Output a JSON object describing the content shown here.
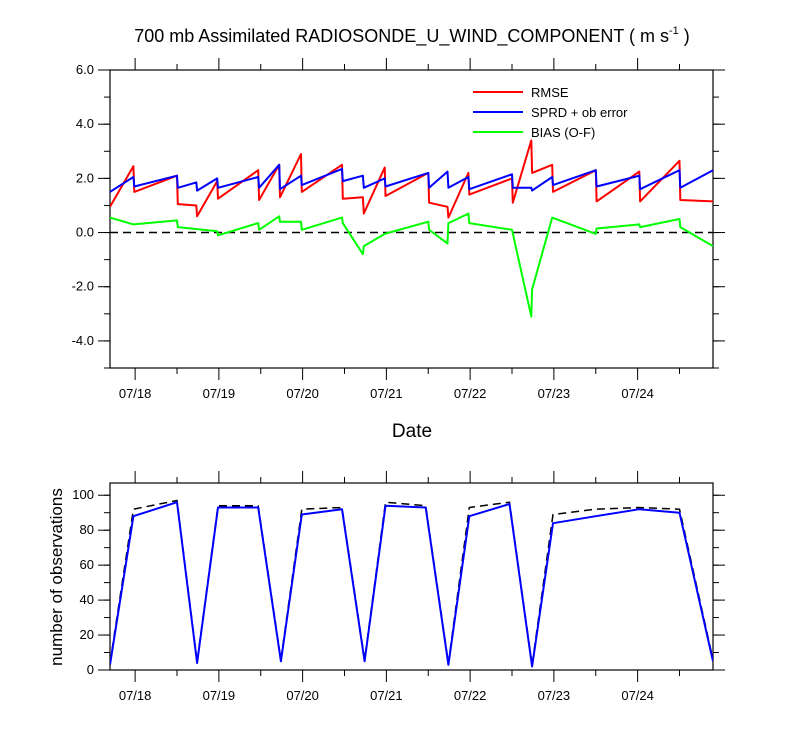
{
  "chart_data": [
    {
      "type": "line",
      "title": "700 mb Assimilated RADIOSONDE_U_WIND_COMPONENT ( m s",
      "title_unit_exponent": "-1",
      "title_suffix": " )",
      "xlabel": "Date",
      "ylabel": "",
      "x_unit": "days since 07/17 00Z",
      "xlim": [
        0.7,
        7.9
      ],
      "ylim": [
        -5,
        6
      ],
      "yticks": [
        -4,
        -2,
        0,
        2,
        4,
        6
      ],
      "ytick_labels": [
        "-4.0",
        "-2.0",
        "0.0",
        "2.0",
        "4.0",
        "6.0"
      ],
      "xticks": [
        1,
        2,
        3,
        4,
        5,
        6,
        7
      ],
      "xtick_labels": [
        "07/18",
        "07/19",
        "07/20",
        "07/21",
        "07/22",
        "07/23",
        "07/24"
      ],
      "zero_line": {
        "y": 0,
        "style": "dashed",
        "color": "#000000"
      },
      "legend_position": "top-right",
      "series": [
        {
          "name": "RMSE",
          "color": "#ff0000",
          "points": [
            [
              0.7,
              0.95
            ],
            [
              0.98,
              2.45
            ],
            [
              0.99,
              1.5
            ],
            [
              1.5,
              2.1
            ],
            [
              1.51,
              1.05
            ],
            [
              1.73,
              1.0
            ],
            [
              1.74,
              0.6
            ],
            [
              1.98,
              1.9
            ],
            [
              1.99,
              1.25
            ],
            [
              2.47,
              2.3
            ],
            [
              2.48,
              1.2
            ],
            [
              2.72,
              2.5
            ],
            [
              2.73,
              1.3
            ],
            [
              2.98,
              2.9
            ],
            [
              2.99,
              1.5
            ],
            [
              3.47,
              2.5
            ],
            [
              3.48,
              1.25
            ],
            [
              3.72,
              1.3
            ],
            [
              3.73,
              0.7
            ],
            [
              3.98,
              2.4
            ],
            [
              3.99,
              1.35
            ],
            [
              4.5,
              2.2
            ],
            [
              4.51,
              1.1
            ],
            [
              4.73,
              0.95
            ],
            [
              4.74,
              0.55
            ],
            [
              4.98,
              2.2
            ],
            [
              4.99,
              1.4
            ],
            [
              5.5,
              2.0
            ],
            [
              5.51,
              1.1
            ],
            [
              5.73,
              3.4
            ],
            [
              5.74,
              2.2
            ],
            [
              5.98,
              2.5
            ],
            [
              5.99,
              1.5
            ],
            [
              6.5,
              2.3
            ],
            [
              6.51,
              1.15
            ],
            [
              7.02,
              2.25
            ],
            [
              7.03,
              1.15
            ],
            [
              7.5,
              2.65
            ],
            [
              7.51,
              1.2
            ],
            [
              7.9,
              1.15
            ]
          ]
        },
        {
          "name": "SPRD + ob error",
          "color": "#0000ff",
          "points": [
            [
              0.7,
              1.5
            ],
            [
              0.98,
              2.05
            ],
            [
              0.99,
              1.7
            ],
            [
              1.5,
              2.1
            ],
            [
              1.51,
              1.65
            ],
            [
              1.73,
              1.85
            ],
            [
              1.74,
              1.55
            ],
            [
              1.98,
              2.0
            ],
            [
              1.99,
              1.65
            ],
            [
              2.47,
              2.05
            ],
            [
              2.48,
              1.65
            ],
            [
              2.72,
              2.5
            ],
            [
              2.73,
              1.6
            ],
            [
              2.98,
              2.1
            ],
            [
              2.99,
              1.75
            ],
            [
              3.47,
              2.35
            ],
            [
              3.48,
              1.9
            ],
            [
              3.72,
              2.1
            ],
            [
              3.73,
              1.65
            ],
            [
              3.98,
              2.0
            ],
            [
              3.99,
              1.7
            ],
            [
              4.5,
              2.2
            ],
            [
              4.51,
              1.65
            ],
            [
              4.73,
              2.25
            ],
            [
              4.74,
              1.65
            ],
            [
              4.98,
              2.05
            ],
            [
              4.99,
              1.6
            ],
            [
              5.5,
              2.15
            ],
            [
              5.51,
              1.65
            ],
            [
              5.73,
              1.65
            ],
            [
              5.74,
              1.55
            ],
            [
              5.98,
              2.05
            ],
            [
              5.99,
              1.75
            ],
            [
              6.5,
              2.3
            ],
            [
              6.51,
              1.7
            ],
            [
              7.02,
              2.1
            ],
            [
              7.03,
              1.6
            ],
            [
              7.5,
              2.3
            ],
            [
              7.51,
              1.65
            ],
            [
              7.9,
              2.3
            ]
          ]
        },
        {
          "name": "BIAS (O-F)",
          "color": "#00ff00",
          "points": [
            [
              0.7,
              0.55
            ],
            [
              0.98,
              0.3
            ],
            [
              1.5,
              0.45
            ],
            [
              1.51,
              0.2
            ],
            [
              1.98,
              0.05
            ],
            [
              1.99,
              -0.1
            ],
            [
              2.47,
              0.35
            ],
            [
              2.48,
              0.1
            ],
            [
              2.72,
              0.6
            ],
            [
              2.73,
              0.4
            ],
            [
              2.98,
              0.4
            ],
            [
              2.99,
              0.1
            ],
            [
              3.47,
              0.55
            ],
            [
              3.48,
              0.35
            ],
            [
              3.72,
              -0.8
            ],
            [
              3.73,
              -0.5
            ],
            [
              3.98,
              -0.05
            ],
            [
              4.5,
              0.4
            ],
            [
              4.51,
              0.1
            ],
            [
              4.73,
              -0.4
            ],
            [
              4.74,
              0.35
            ],
            [
              4.98,
              0.7
            ],
            [
              4.99,
              0.35
            ],
            [
              5.5,
              0.1
            ],
            [
              5.73,
              -3.1
            ],
            [
              5.74,
              -2.1
            ],
            [
              5.98,
              0.55
            ],
            [
              6.5,
              -0.05
            ],
            [
              6.51,
              0.15
            ],
            [
              7.02,
              0.3
            ],
            [
              7.03,
              0.2
            ],
            [
              7.5,
              0.5
            ],
            [
              7.51,
              0.2
            ],
            [
              7.9,
              -0.5
            ]
          ]
        }
      ]
    },
    {
      "type": "line",
      "title": "",
      "xlabel": "",
      "ylabel": "number of observations",
      "x_unit": "days since 07/17 00Z",
      "xlim": [
        0.7,
        7.9
      ],
      "ylim": [
        0,
        107
      ],
      "yticks": [
        0,
        20,
        40,
        60,
        80,
        100
      ],
      "ytick_labels": [
        "0",
        "20",
        "40",
        "60",
        "80",
        "100"
      ],
      "xticks": [
        1,
        2,
        3,
        4,
        5,
        6,
        7
      ],
      "xtick_labels": [
        "07/18",
        "07/19",
        "07/20",
        "07/21",
        "07/22",
        "07/23",
        "07/24"
      ],
      "series": [
        {
          "color": "#000000",
          "style": "dashed",
          "points": [
            [
              0.7,
              4
            ],
            [
              0.98,
              92
            ],
            [
              1.5,
              97
            ],
            [
              1.74,
              5
            ],
            [
              1.99,
              94
            ],
            [
              2.47,
              94
            ],
            [
              2.74,
              6
            ],
            [
              2.99,
              92
            ],
            [
              3.47,
              93
            ],
            [
              3.74,
              6
            ],
            [
              3.99,
              96
            ],
            [
              4.47,
              94
            ],
            [
              4.74,
              4
            ],
            [
              4.99,
              93
            ],
            [
              5.47,
              96
            ],
            [
              5.74,
              3
            ],
            [
              5.99,
              89
            ],
            [
              6.5,
              92
            ],
            [
              7.02,
              93
            ],
            [
              7.5,
              92
            ],
            [
              7.9,
              6
            ]
          ]
        },
        {
          "color": "#0000ff",
          "style": "solid",
          "points": [
            [
              0.7,
              3
            ],
            [
              0.98,
              88
            ],
            [
              1.5,
              96
            ],
            [
              1.74,
              4
            ],
            [
              1.99,
              93
            ],
            [
              2.47,
              93
            ],
            [
              2.74,
              5
            ],
            [
              2.99,
              89
            ],
            [
              3.47,
              92
            ],
            [
              3.74,
              5
            ],
            [
              3.99,
              94
            ],
            [
              4.47,
              93
            ],
            [
              4.74,
              3
            ],
            [
              4.99,
              88
            ],
            [
              5.47,
              95
            ],
            [
              5.74,
              2
            ],
            [
              5.99,
              84
            ],
            [
              6.5,
              88
            ],
            [
              7.02,
              92
            ],
            [
              7.5,
              90
            ],
            [
              7.9,
              5
            ]
          ]
        }
      ]
    }
  ]
}
